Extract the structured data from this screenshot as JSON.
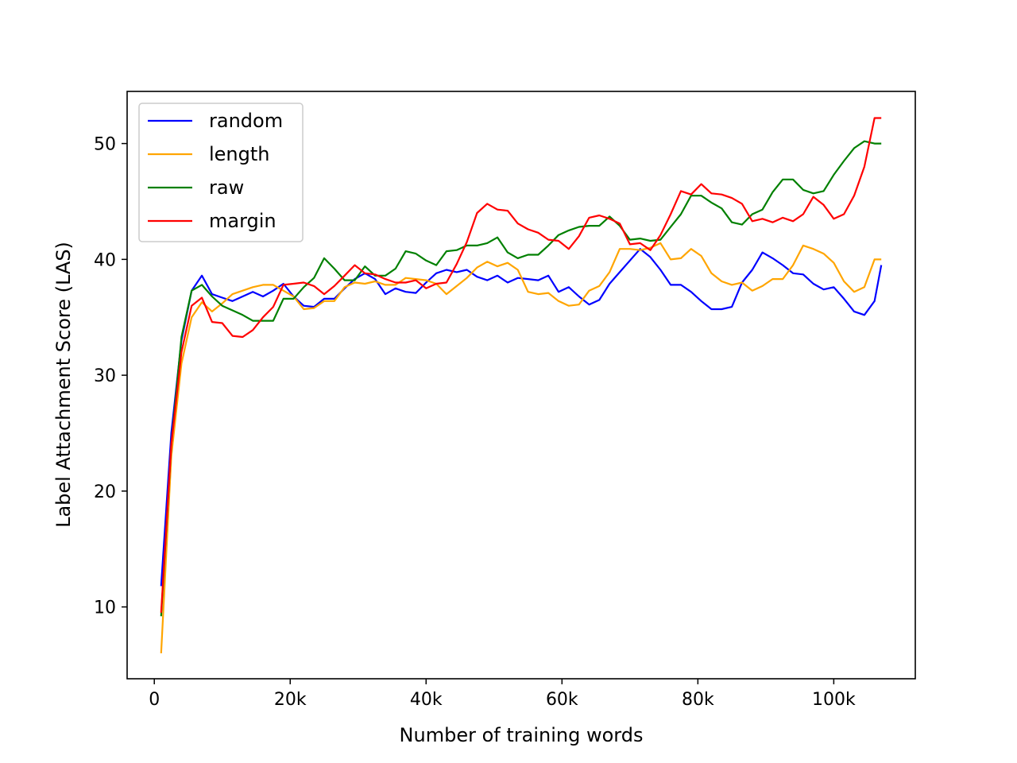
{
  "chart_data": {
    "type": "line",
    "title": "",
    "xlabel": "Number of training words",
    "ylabel": "Label Attachment Score (LAS)",
    "xlim": [
      -4000,
      112000
    ],
    "ylim": [
      3.8,
      54.5
    ],
    "xticks": [
      0,
      20000,
      40000,
      60000,
      80000,
      100000
    ],
    "xtick_labels": [
      "0",
      "20k",
      "40k",
      "60k",
      "80k",
      "100k"
    ],
    "yticks": [
      10,
      20,
      30,
      40,
      50
    ],
    "ytick_labels": [
      "10",
      "20",
      "30",
      "40",
      "50"
    ],
    "grid": false,
    "legend_position": "upper left",
    "x": [
      1000,
      2500,
      4000,
      5500,
      7000,
      8500,
      10000,
      11500,
      13000,
      14500,
      16000,
      17500,
      19000,
      20500,
      22000,
      23500,
      25000,
      26500,
      28000,
      29500,
      31000,
      32500,
      34000,
      35500,
      37000,
      38500,
      40000,
      41500,
      43000,
      44500,
      46000,
      47500,
      49000,
      50500,
      52000,
      53500,
      55000,
      56500,
      58000,
      59500,
      61000,
      62500,
      64000,
      65500,
      67000,
      68500,
      70000,
      71500,
      73000,
      74500,
      76000,
      77500,
      79000,
      80500,
      82000,
      83500,
      85000,
      86500,
      88000,
      89500,
      91000,
      92500,
      94000,
      95500,
      97000,
      98500,
      100000,
      101500,
      103000,
      104500,
      106000,
      107000
    ],
    "series": [
      {
        "name": "random",
        "color": "#0000ff",
        "values": [
          11.8,
          25.0,
          33.0,
          37.3,
          38.6,
          37.0,
          36.7,
          36.4,
          36.8,
          37.2,
          36.8,
          37.3,
          37.9,
          36.8,
          36.0,
          35.9,
          36.6,
          36.6,
          37.5,
          38.3,
          38.8,
          38.3,
          37.0,
          37.5,
          37.2,
          37.1,
          38.0,
          38.8,
          39.1,
          38.9,
          39.1,
          38.5,
          38.2,
          38.6,
          38.0,
          38.4,
          38.3,
          38.2,
          38.6,
          37.2,
          37.6,
          36.8,
          36.1,
          36.5,
          37.9,
          38.9,
          39.9,
          40.9,
          40.2,
          39.1,
          37.8,
          37.8,
          37.2,
          36.4,
          35.7,
          35.7,
          35.9,
          38.0,
          39.1,
          40.6,
          40.1,
          39.5,
          38.8,
          38.7,
          37.9,
          37.4,
          37.6,
          36.6,
          35.5,
          35.2,
          36.4,
          39.5
        ]
      },
      {
        "name": "length",
        "color": "#ffa500",
        "values": [
          6.0,
          23.0,
          31.0,
          35.0,
          36.3,
          35.5,
          36.2,
          37.0,
          37.3,
          37.6,
          37.8,
          37.8,
          37.3,
          36.8,
          35.7,
          35.8,
          36.4,
          36.4,
          37.6,
          38.0,
          37.9,
          38.1,
          37.8,
          37.8,
          38.4,
          38.3,
          38.2,
          37.9,
          37.0,
          37.7,
          38.4,
          39.3,
          39.8,
          39.4,
          39.7,
          39.1,
          37.2,
          37.0,
          37.1,
          36.4,
          36.0,
          36.1,
          37.3,
          37.7,
          38.9,
          40.9,
          40.9,
          40.8,
          41.0,
          41.4,
          40.0,
          40.1,
          40.9,
          40.3,
          38.8,
          38.1,
          37.8,
          38.0,
          37.3,
          37.7,
          38.3,
          38.3,
          39.5,
          41.2,
          40.9,
          40.5,
          39.7,
          38.1,
          37.2,
          37.6,
          40.0,
          40.0
        ]
      },
      {
        "name": "raw",
        "color": "#008000",
        "values": [
          9.2,
          24.0,
          33.3,
          37.3,
          37.8,
          36.8,
          36.0,
          35.6,
          35.2,
          34.7,
          34.7,
          34.7,
          36.6,
          36.6,
          37.6,
          38.4,
          40.1,
          39.2,
          38.2,
          38.2,
          39.4,
          38.6,
          38.6,
          39.2,
          40.7,
          40.5,
          39.9,
          39.5,
          40.7,
          40.8,
          41.2,
          41.2,
          41.4,
          41.9,
          40.6,
          40.1,
          40.4,
          40.4,
          41.2,
          42.1,
          42.5,
          42.8,
          42.9,
          42.9,
          43.7,
          42.9,
          41.7,
          41.8,
          41.6,
          41.7,
          42.8,
          43.9,
          45.5,
          45.5,
          44.9,
          44.4,
          43.2,
          43.0,
          43.9,
          44.3,
          45.8,
          46.9,
          46.9,
          46.0,
          45.7,
          45.9,
          47.3,
          48.5,
          49.6,
          50.2,
          50.0,
          50.0
        ]
      },
      {
        "name": "margin",
        "color": "#ff0000",
        "values": [
          9.5,
          24.0,
          32.0,
          36.0,
          36.7,
          34.6,
          34.5,
          33.4,
          33.3,
          33.9,
          35.0,
          35.9,
          37.8,
          37.9,
          38.0,
          37.7,
          37.0,
          37.7,
          38.6,
          39.5,
          38.8,
          38.7,
          38.3,
          38.0,
          38.0,
          38.2,
          37.5,
          37.9,
          38.0,
          39.6,
          41.5,
          44.0,
          44.8,
          44.3,
          44.2,
          43.1,
          42.6,
          42.3,
          41.7,
          41.6,
          40.9,
          42.0,
          43.6,
          43.8,
          43.5,
          43.1,
          41.3,
          41.4,
          40.8,
          42.1,
          43.9,
          45.9,
          45.6,
          46.5,
          45.7,
          45.6,
          45.3,
          44.8,
          43.3,
          43.5,
          43.2,
          43.6,
          43.3,
          43.9,
          45.4,
          44.7,
          43.5,
          43.9,
          45.5,
          48.0,
          52.2,
          52.2
        ]
      }
    ]
  }
}
